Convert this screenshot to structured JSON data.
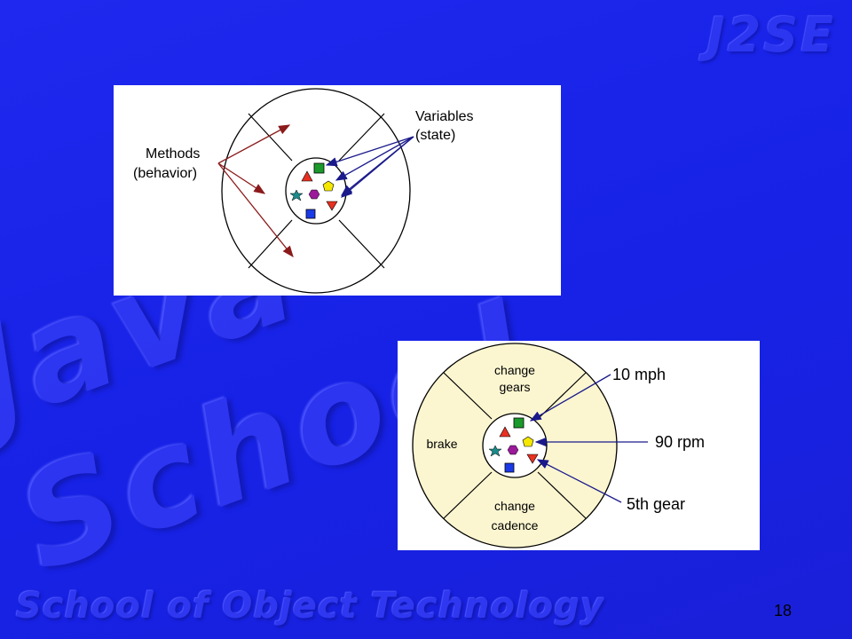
{
  "watermarks": {
    "product": "J2SE",
    "brand": "Java School",
    "footer": "School of Object Technology"
  },
  "page_number": "18",
  "diagram_generic": {
    "methods_label_line1": "Methods",
    "methods_label_line2": "(behavior)",
    "variables_label_line1": "Variables",
    "variables_label_line2": "(state)"
  },
  "diagram_bicycle": {
    "segment_top_line1": "change",
    "segment_top_line2": "gears",
    "segment_left": "brake",
    "segment_bottom_line1": "change",
    "segment_bottom_line2": "cadence",
    "state_1": "10 mph",
    "state_2": "90 rpm",
    "state_3": "5th gear"
  },
  "colors": {
    "background": "#1e26ec",
    "method_arrow": "#8b1a1a",
    "variable_arrow": "#1a1a8b",
    "bicycle_fill": "#fbf6d0"
  }
}
